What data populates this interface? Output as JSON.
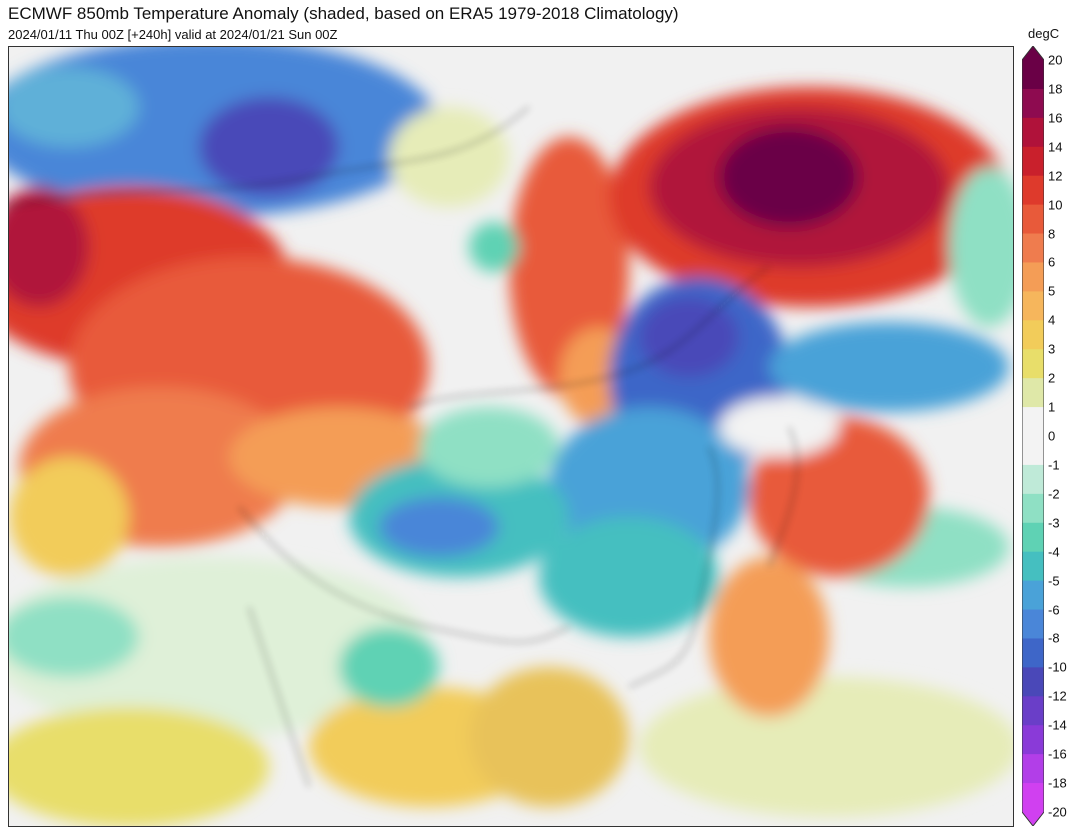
{
  "header": {
    "title": "ECMWF 850mb Temperature Anomaly (shaded, based on ERA5 1979-2018 Climatology)",
    "subtitle": "2024/01/11 Thu 00Z [+240h] valid at 2024/01/21 Sun 00Z"
  },
  "colorbar": {
    "unit": "degC",
    "labels": [
      "20",
      "18",
      "16",
      "14",
      "12",
      "10",
      "8",
      "6",
      "5",
      "4",
      "3",
      "2",
      "1",
      "0",
      "-1",
      "-2",
      "-3",
      "-4",
      "-5",
      "-6",
      "-8",
      "-10",
      "-12",
      "-14",
      "-16",
      "-18",
      "-20"
    ],
    "colors": [
      "#6a0046",
      "#8e0b50",
      "#b0123a",
      "#c9202c",
      "#de3a2c",
      "#e85a3a",
      "#ef7c4e",
      "#f49d56",
      "#f6b65c",
      "#f2cc5a",
      "#e8de6a",
      "#dfe8a8",
      "#f3f3f3",
      "#f3f3f3",
      "#bfead8",
      "#8fe0c4",
      "#5fd2b4",
      "#45bfc0",
      "#4aa2d8",
      "#4a86d8",
      "#3e66c8",
      "#4a48b8",
      "#6a3ec8",
      "#8a3ad8",
      "#b23ee8",
      "#d040f0"
    ]
  },
  "map": {
    "regions": [
      {
        "name": "warm-anomaly-western-russia",
        "color": "#de3a2c"
      },
      {
        "name": "warm-anomaly-central-asia",
        "color": "#ef7c4e"
      },
      {
        "name": "warm-anomaly-siberia",
        "color": "#b0123a"
      },
      {
        "name": "warm-anomaly-east-siberia-core",
        "color": "#6a0046"
      },
      {
        "name": "warm-anomaly-japan",
        "color": "#e85a3a"
      },
      {
        "name": "cold-anomaly-northwest",
        "color": "#4a86d8"
      },
      {
        "name": "cold-anomaly-china",
        "color": "#4a66c8"
      },
      {
        "name": "cold-anomaly-tibet",
        "color": "#45bfc0"
      },
      {
        "name": "neutral-south-asia",
        "color": "#f3f3f3"
      },
      {
        "name": "mild-warm-southeast-asia",
        "color": "#f2cc5a"
      }
    ]
  }
}
